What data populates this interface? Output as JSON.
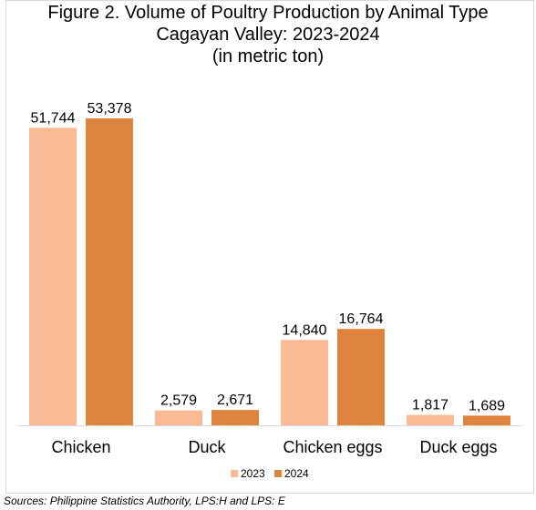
{
  "title_lines": [
    "Figure 2. Volume of Poultry Production by Animal Type",
    "Cagayan Valley: 2023-2024",
    "(in metric ton)"
  ],
  "source": "Sources: Philippine Statistics Authority, LPS:H and LPS: E",
  "chart_data": {
    "type": "bar",
    "title": "Figure 2. Volume of Poultry Production by Animal Type Cagayan Valley: 2023-2024 (in metric ton)",
    "categories": [
      "Chicken",
      "Duck",
      "Chicken eggs",
      "Duck eggs"
    ],
    "series": [
      {
        "name": "2023",
        "values": [
          51744,
          2579,
          14840,
          1817
        ],
        "labels": [
          "51,744",
          "2,579",
          "14,840",
          "1,817"
        ],
        "color": "#F8B994"
      },
      {
        "name": "2024",
        "values": [
          53378,
          2671,
          16764,
          1689
        ],
        "labels": [
          "53,378",
          "2,671",
          "16,764",
          "1,689"
        ],
        "color": "#DE843F"
      }
    ],
    "xlabel": "",
    "ylabel": "",
    "ylim": [
      0,
      60000
    ],
    "grid": false,
    "legend": "bottom-center"
  }
}
